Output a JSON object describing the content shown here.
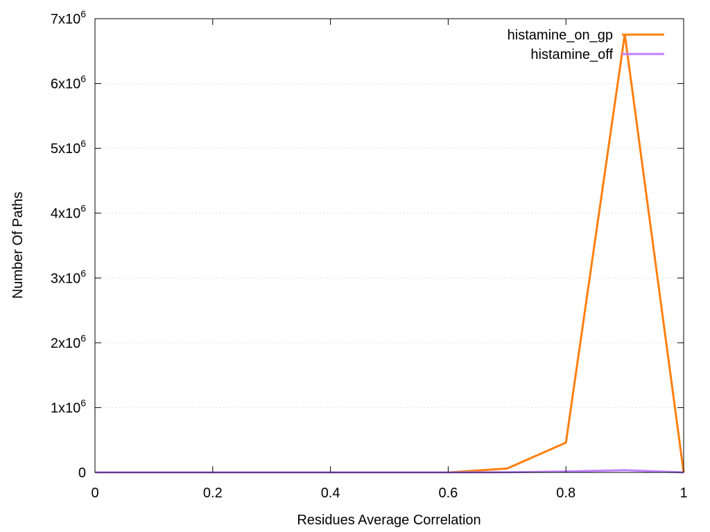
{
  "chart_data": {
    "type": "line",
    "title": "",
    "xlabel": "Residues Average Correlation",
    "ylabel": "Number Of Paths",
    "xlim": [
      0,
      1
    ],
    "ylim": [
      0,
      7000000
    ],
    "grid": {
      "y": true,
      "x": false,
      "style": "dotted"
    },
    "legend_position": "top-right",
    "x_ticks": [
      {
        "value": 0,
        "label": "0"
      },
      {
        "value": 0.2,
        "label": "0.2"
      },
      {
        "value": 0.4,
        "label": "0.4"
      },
      {
        "value": 0.6,
        "label": "0.6"
      },
      {
        "value": 0.8,
        "label": "0.8"
      },
      {
        "value": 1,
        "label": "1"
      }
    ],
    "y_ticks": [
      {
        "value": 0,
        "base": "0",
        "exp": ""
      },
      {
        "value": 1000000,
        "base": "1x10",
        "exp": "6"
      },
      {
        "value": 2000000,
        "base": "2x10",
        "exp": "6"
      },
      {
        "value": 3000000,
        "base": "3x10",
        "exp": "6"
      },
      {
        "value": 4000000,
        "base": "4x10",
        "exp": "6"
      },
      {
        "value": 5000000,
        "base": "5x10",
        "exp": "6"
      },
      {
        "value": 6000000,
        "base": "6x10",
        "exp": "6"
      },
      {
        "value": 7000000,
        "base": "7x10",
        "exp": "6"
      }
    ],
    "series": [
      {
        "name": "histamine_on_gp",
        "color": "#ff7f0e",
        "x": [
          0,
          0.1,
          0.2,
          0.3,
          0.4,
          0.5,
          0.6,
          0.7,
          0.8,
          0.9,
          1.0
        ],
        "y": [
          0,
          0,
          0,
          0,
          0,
          0,
          0,
          60000,
          460000,
          6760000,
          0
        ]
      },
      {
        "name": "histamine_off",
        "color": "#c080ff",
        "x": [
          0,
          0.1,
          0.2,
          0.3,
          0.4,
          0.5,
          0.6,
          0.7,
          0.8,
          0.9,
          1.0
        ],
        "y": [
          0,
          0,
          0,
          0,
          0,
          0,
          0,
          2000,
          15000,
          35000,
          0
        ]
      }
    ]
  }
}
